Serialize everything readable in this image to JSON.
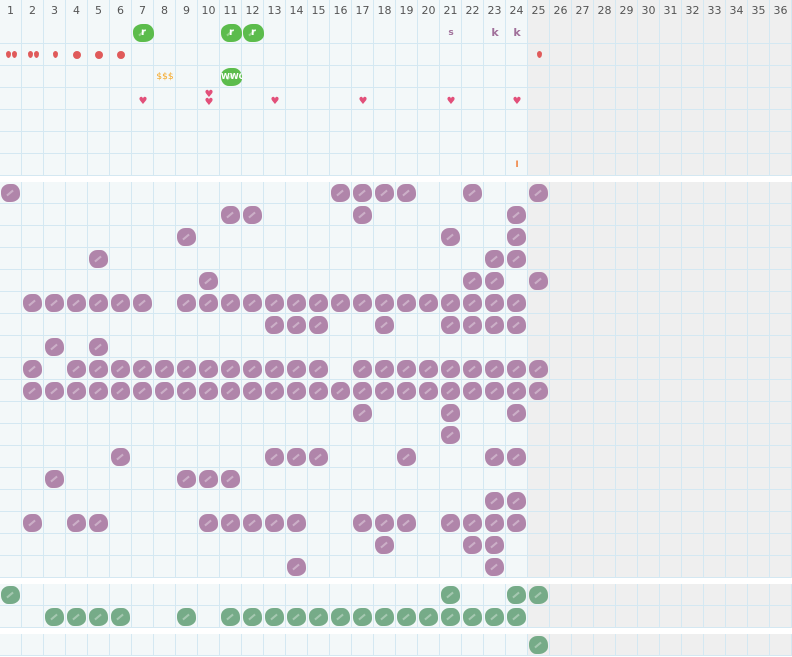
{
  "days": [
    "1",
    "2",
    "3",
    "4",
    "5",
    "6",
    "7",
    "8",
    "9",
    "10",
    "11",
    "12",
    "13",
    "14",
    "15",
    "16",
    "17",
    "18",
    "19",
    "20",
    "21",
    "22",
    "23",
    "24",
    "25",
    "26",
    "27",
    "28",
    "29",
    "30",
    "31",
    "32",
    "33",
    "34",
    "35",
    "36"
  ],
  "first_future_day": 25,
  "colors": {
    "grid_line": "#d4e8f2",
    "cell": "#f3f8f9",
    "future_cell": "#efefef",
    "purple": "#b085aa",
    "green": "#76ab88",
    "lime": "#5cbc4c",
    "red": "#e05a5a",
    "pink": "#e2507a",
    "gold": "#f5a623",
    "letter": "#a0709a",
    "orange": "#f08a4b"
  },
  "top_section": {
    "rows": 7,
    "marks": [
      {
        "row": 0,
        "day": 7,
        "type": "lime-blob",
        "label": "r"
      },
      {
        "row": 0,
        "day": 11,
        "type": "lime-blob",
        "label": "r"
      },
      {
        "row": 0,
        "day": 12,
        "type": "lime-blob",
        "label": "r"
      },
      {
        "row": 0,
        "day": 21,
        "type": "letter",
        "label": "s"
      },
      {
        "row": 0,
        "day": 23,
        "type": "letter",
        "label": "k"
      },
      {
        "row": 0,
        "day": 24,
        "type": "letter",
        "label": "k"
      },
      {
        "row": 1,
        "day": 1,
        "type": "drop",
        "count": 2
      },
      {
        "row": 1,
        "day": 2,
        "type": "drop",
        "count": 2
      },
      {
        "row": 1,
        "day": 3,
        "type": "drop",
        "count": 1
      },
      {
        "row": 1,
        "day": 4,
        "type": "dot"
      },
      {
        "row": 1,
        "day": 5,
        "type": "dot"
      },
      {
        "row": 1,
        "day": 6,
        "type": "dot"
      },
      {
        "row": 1,
        "day": 25,
        "type": "drop",
        "count": 1
      },
      {
        "row": 2,
        "day": 8,
        "type": "money",
        "label": "$$$"
      },
      {
        "row": 2,
        "day": 11,
        "type": "lime-blob",
        "label": "WWO"
      },
      {
        "row": 3,
        "day": 7,
        "type": "heart",
        "count": 1
      },
      {
        "row": 3,
        "day": 10,
        "type": "heart",
        "count": 2
      },
      {
        "row": 3,
        "day": 13,
        "type": "heart",
        "count": 1
      },
      {
        "row": 3,
        "day": 17,
        "type": "heart",
        "count": 1
      },
      {
        "row": 3,
        "day": 21,
        "type": "heart",
        "count": 1
      },
      {
        "row": 3,
        "day": 24,
        "type": "heart",
        "count": 1
      },
      {
        "row": 6,
        "day": 24,
        "type": "tick",
        "label": "I"
      }
    ]
  },
  "purple_section": {
    "rows": [
      [
        1,
        16,
        17,
        18,
        19,
        22,
        25
      ],
      [
        11,
        12,
        17,
        24
      ],
      [
        9,
        21,
        24
      ],
      [
        5,
        23,
        24
      ],
      [
        10,
        22,
        23,
        25
      ],
      [
        2,
        3,
        4,
        5,
        6,
        7,
        9,
        10,
        11,
        12,
        13,
        14,
        15,
        16,
        17,
        18,
        19,
        20,
        21,
        22,
        23,
        24
      ],
      [
        13,
        14,
        15,
        18,
        21,
        22,
        23,
        24
      ],
      [
        3,
        5
      ],
      [
        2,
        4,
        5,
        6,
        7,
        8,
        9,
        10,
        11,
        12,
        13,
        14,
        15,
        17,
        18,
        19,
        20,
        21,
        22,
        23,
        24,
        25
      ],
      [
        2,
        3,
        4,
        5,
        6,
        7,
        8,
        9,
        10,
        11,
        12,
        13,
        14,
        15,
        16,
        17,
        18,
        19,
        20,
        21,
        22,
        23,
        24,
        25
      ],
      [
        17,
        21,
        24
      ],
      [
        21
      ],
      [
        6,
        13,
        14,
        15,
        19,
        23,
        24
      ],
      [
        3,
        9,
        10,
        11
      ],
      [
        23,
        24
      ],
      [
        2,
        4,
        5,
        10,
        11,
        12,
        13,
        14,
        17,
        18,
        19,
        21,
        22,
        23,
        24
      ],
      [
        18,
        22,
        23
      ],
      [
        14,
        23
      ]
    ]
  },
  "green_section": {
    "rows": [
      [
        1,
        21,
        24,
        25
      ],
      [
        3,
        4,
        5,
        6,
        9,
        11,
        12,
        13,
        14,
        15,
        16,
        17,
        18,
        19,
        20,
        21,
        22,
        23,
        24
      ]
    ]
  },
  "bottom_section": {
    "rows": [
      [
        25
      ]
    ]
  }
}
